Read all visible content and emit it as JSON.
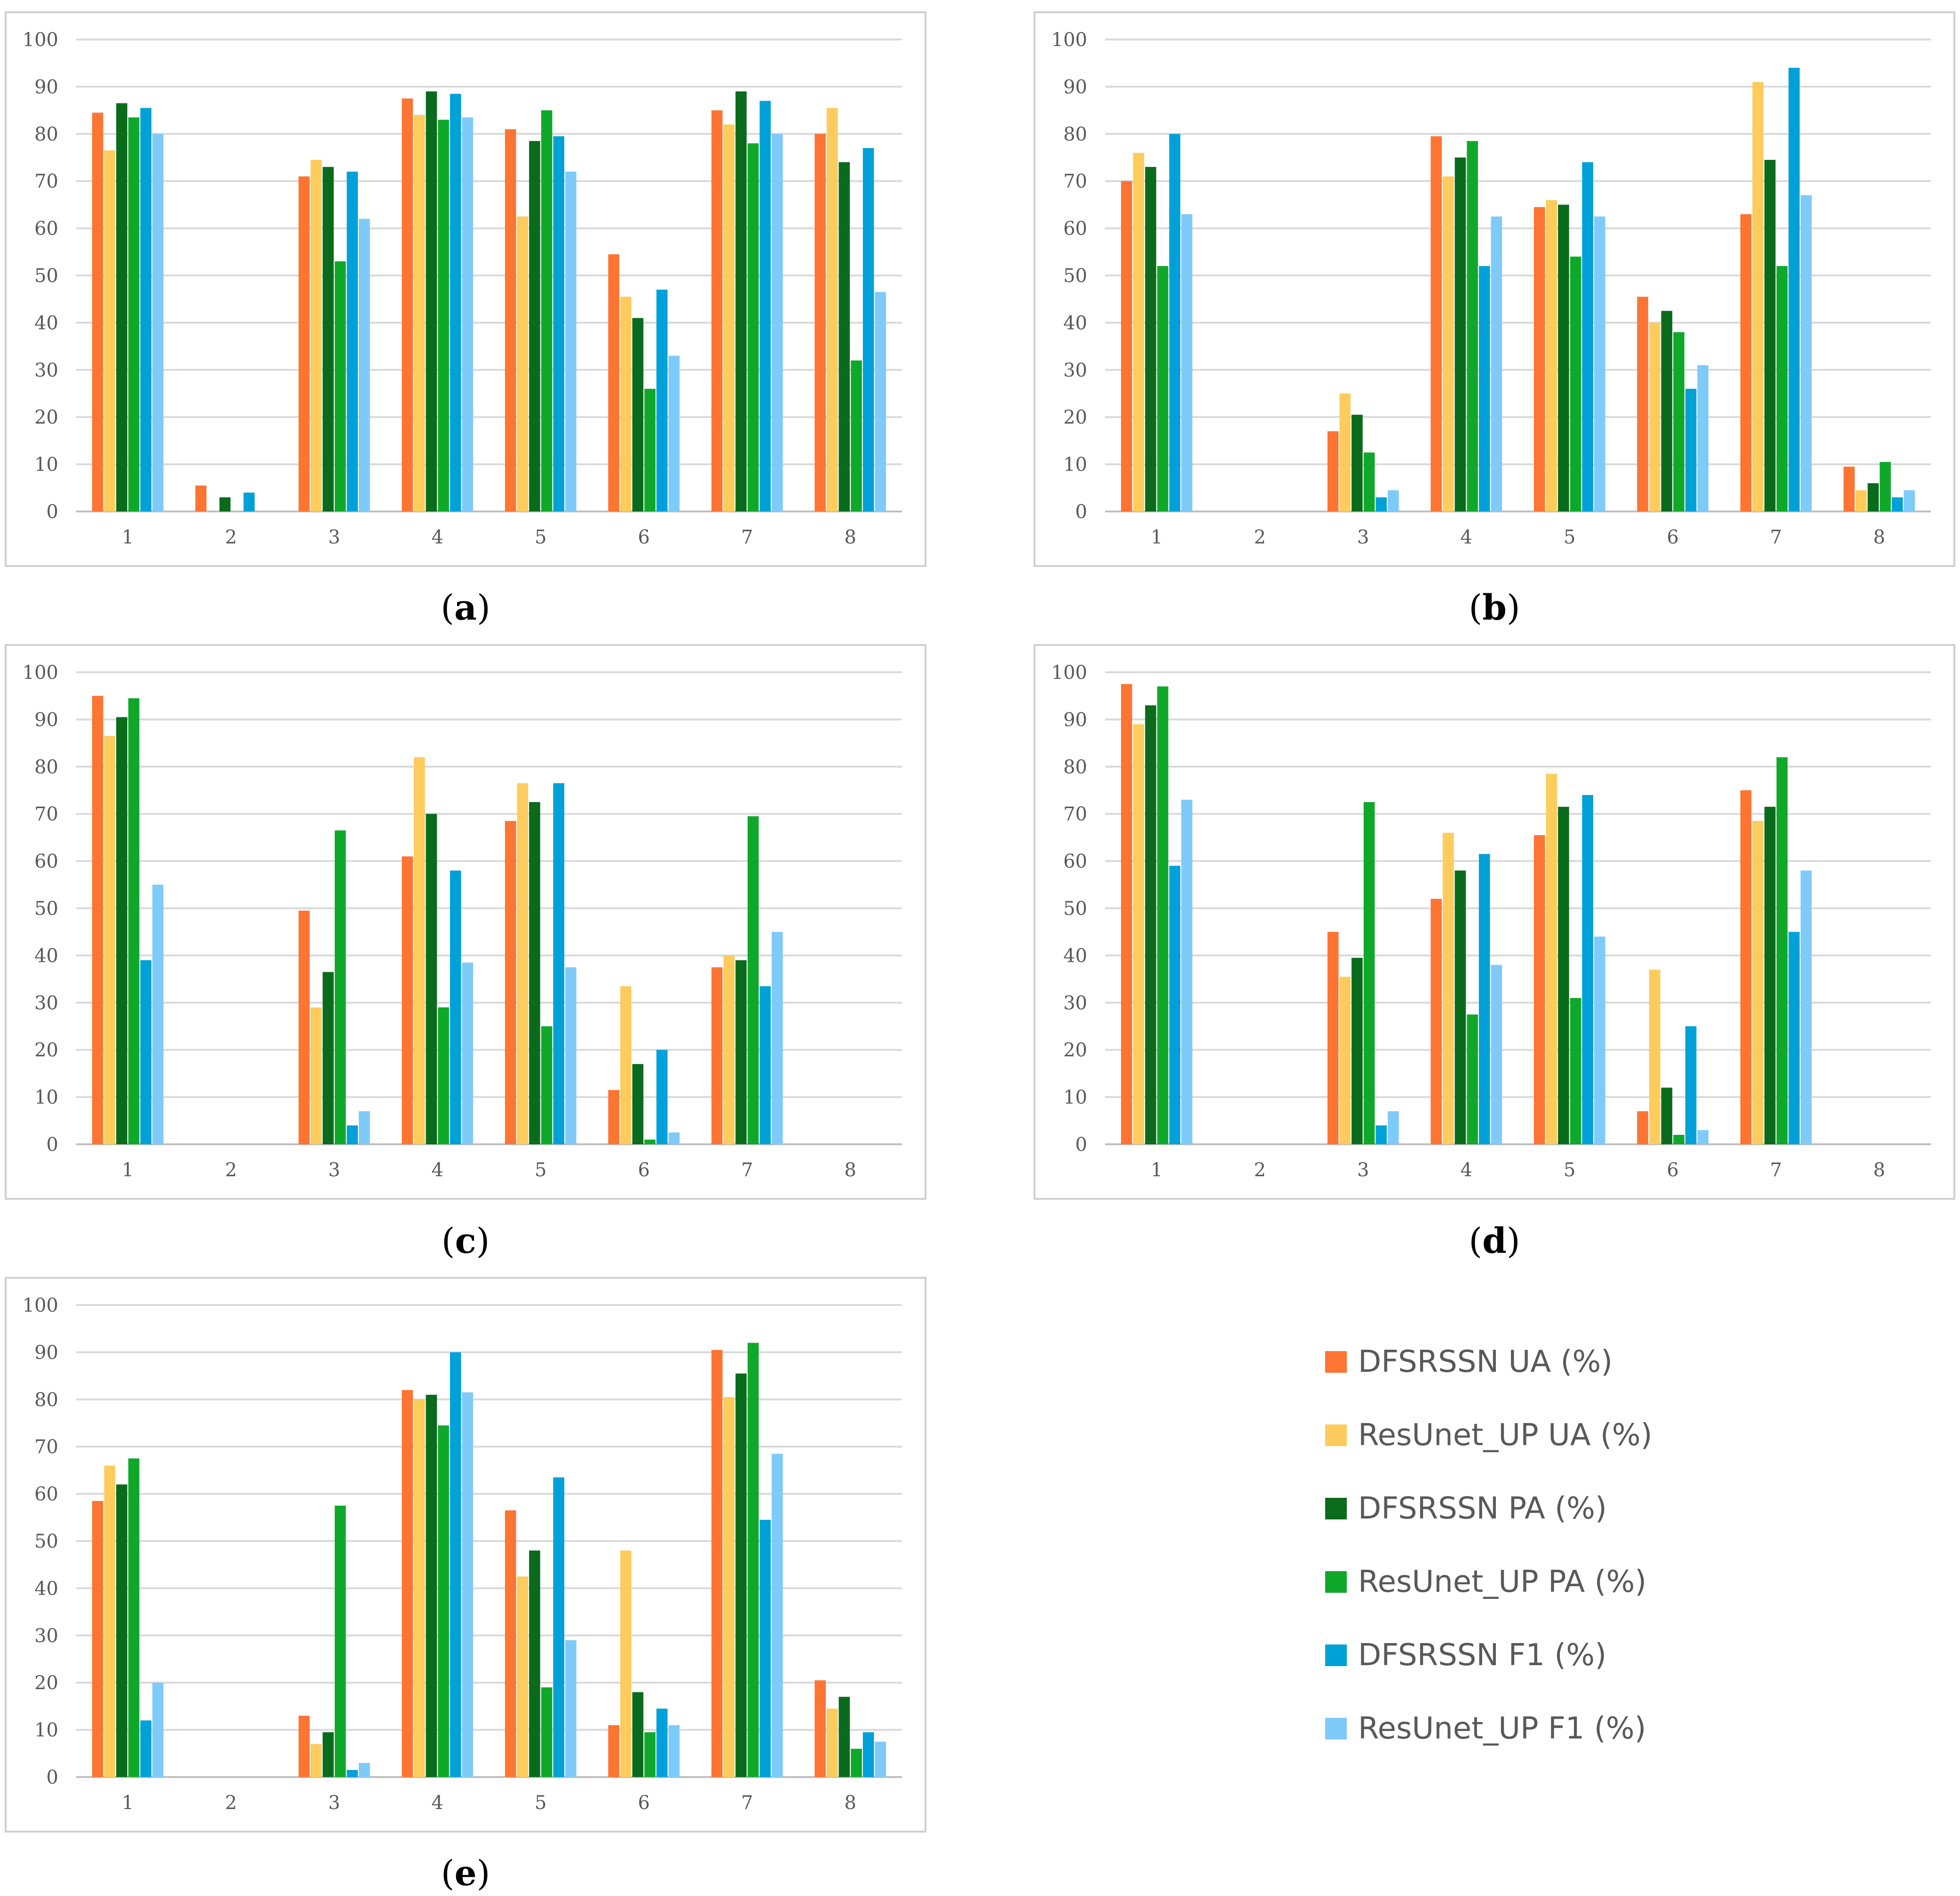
{
  "chart_data": {
    "type": "bar",
    "categories": [
      "1",
      "2",
      "3",
      "4",
      "5",
      "6",
      "7",
      "8"
    ],
    "ylim": [
      0,
      100
    ],
    "yticks": [
      0,
      10,
      20,
      30,
      40,
      50,
      60,
      70,
      80,
      90,
      100
    ],
    "legend_position": "bottom-right",
    "series_meta": [
      {
        "name": "DFSRSSN UA (%)",
        "color": "#fd7433"
      },
      {
        "name": "ResUnet_UP UA (%)",
        "color": "#fecc5c"
      },
      {
        "name": "DFSRSSN PA (%)",
        "color": "#0b6b1d"
      },
      {
        "name": "ResUnet_UP PA (%)",
        "color": "#10a82a"
      },
      {
        "name": "DFSRSSN F1 (%)",
        "color": "#00a1d9"
      },
      {
        "name": "ResUnet_UP F1 (%)",
        "color": "#7ecbf9"
      }
    ],
    "panels": [
      {
        "label": "a",
        "series": [
          {
            "name": "DFSRSSN UA (%)",
            "values": [
              84.5,
              5.5,
              71,
              87.5,
              81,
              54.5,
              85,
              80
            ]
          },
          {
            "name": "ResUnet_UP UA (%)",
            "values": [
              76.5,
              0,
              74.5,
              84,
              62.5,
              45.5,
              82,
              85.5
            ]
          },
          {
            "name": "DFSRSSN PA (%)",
            "values": [
              86.5,
              3,
              73,
              89,
              78.5,
              41,
              89,
              74
            ]
          },
          {
            "name": "ResUnet_UP PA (%)",
            "values": [
              83.5,
              0,
              53,
              83,
              85,
              26,
              78,
              32
            ]
          },
          {
            "name": "DFSRSSN F1 (%)",
            "values": [
              85.5,
              4,
              72,
              88.5,
              79.5,
              47,
              87,
              77
            ]
          },
          {
            "name": "ResUnet_UP F1 (%)",
            "values": [
              80,
              0,
              62,
              83.5,
              72,
              33,
              80,
              46.5
            ]
          }
        ]
      },
      {
        "label": "b",
        "series": [
          {
            "name": "DFSRSSN UA (%)",
            "values": [
              70,
              0,
              17,
              79.5,
              64.5,
              45.5,
              63,
              9.5
            ]
          },
          {
            "name": "ResUnet_UP UA (%)",
            "values": [
              76,
              0,
              25,
              71,
              66,
              40,
              91,
              4.5
            ]
          },
          {
            "name": "DFSRSSN PA (%)",
            "values": [
              73,
              0,
              20.5,
              75,
              65,
              42.5,
              74.5,
              6
            ]
          },
          {
            "name": "ResUnet_UP PA (%)",
            "values": [
              52,
              0,
              12.5,
              78.5,
              54,
              38,
              52,
              10.5
            ]
          },
          {
            "name": "DFSRSSN F1 (%)",
            "values": [
              80,
              0,
              3,
              52,
              74,
              26,
              94,
              3
            ]
          },
          {
            "name": "ResUnet_UP F1 (%)",
            "values": [
              63,
              0,
              4.5,
              62.5,
              62.5,
              31,
              67,
              4.5
            ]
          }
        ]
      },
      {
        "label": "c",
        "series": [
          {
            "name": "DFSRSSN UA (%)",
            "values": [
              95,
              0,
              49.5,
              61,
              68.5,
              11.5,
              37.5,
              0
            ]
          },
          {
            "name": "ResUnet_UP UA (%)",
            "values": [
              86.5,
              0,
              29,
              82,
              76.5,
              33.5,
              40,
              0
            ]
          },
          {
            "name": "DFSRSSN PA (%)",
            "values": [
              90.5,
              0,
              36.5,
              70,
              72.5,
              17,
              39,
              0
            ]
          },
          {
            "name": "ResUnet_UP PA (%)",
            "values": [
              94.5,
              0,
              66.5,
              29,
              25,
              1,
              69.5,
              0
            ]
          },
          {
            "name": "DFSRSSN F1 (%)",
            "values": [
              39,
              0,
              4,
              58,
              76.5,
              20,
              33.5,
              0
            ]
          },
          {
            "name": "ResUnet_UP F1 (%)",
            "values": [
              55,
              0,
              7,
              38.5,
              37.5,
              2.5,
              45,
              0
            ]
          }
        ]
      },
      {
        "label": "d",
        "series": [
          {
            "name": "DFSRSSN UA (%)",
            "values": [
              97.5,
              0,
              45,
              52,
              65.5,
              7,
              75,
              0
            ]
          },
          {
            "name": "ResUnet_UP UA (%)",
            "values": [
              89,
              0,
              35.5,
              66,
              78.5,
              37,
              68.5,
              0
            ]
          },
          {
            "name": "DFSRSSN PA (%)",
            "values": [
              93,
              0,
              39.5,
              58,
              71.5,
              12,
              71.5,
              0
            ]
          },
          {
            "name": "ResUnet_UP PA (%)",
            "values": [
              97,
              0,
              72.5,
              27.5,
              31,
              2,
              82,
              0
            ]
          },
          {
            "name": "DFSRSSN F1 (%)",
            "values": [
              59,
              0,
              4,
              61.5,
              74,
              25,
              45,
              0
            ]
          },
          {
            "name": "ResUnet_UP F1 (%)",
            "values": [
              73,
              0,
              7,
              38,
              44,
              3,
              58,
              0
            ]
          }
        ]
      },
      {
        "label": "e",
        "series": [
          {
            "name": "DFSRSSN UA (%)",
            "values": [
              58.5,
              0,
              13,
              82,
              56.5,
              11,
              90.5,
              20.5
            ]
          },
          {
            "name": "ResUnet_UP UA (%)",
            "values": [
              66,
              0,
              7,
              80,
              42.5,
              48,
              80.5,
              14.5
            ]
          },
          {
            "name": "DFSRSSN PA (%)",
            "values": [
              62,
              0,
              9.5,
              81,
              48,
              18,
              85.5,
              17
            ]
          },
          {
            "name": "ResUnet_UP PA (%)",
            "values": [
              67.5,
              0,
              57.5,
              74.5,
              19,
              9.5,
              92,
              6
            ]
          },
          {
            "name": "DFSRSSN F1 (%)",
            "values": [
              12,
              0,
              1.5,
              90,
              63.5,
              14.5,
              54.5,
              9.5
            ]
          },
          {
            "name": "ResUnet_UP F1 (%)",
            "values": [
              20,
              0,
              3,
              81.5,
              29,
              11,
              68.5,
              7.5
            ]
          }
        ]
      }
    ]
  },
  "captions": {
    "a": {
      "open": "(",
      "letter": "a",
      "close": ")"
    },
    "b": {
      "open": "(",
      "letter": "b",
      "close": ")"
    },
    "c": {
      "open": "(",
      "letter": "c",
      "close": ")"
    },
    "d": {
      "open": "(",
      "letter": "d",
      "close": ")"
    },
    "e": {
      "open": "(",
      "letter": "e",
      "close": ")"
    }
  }
}
